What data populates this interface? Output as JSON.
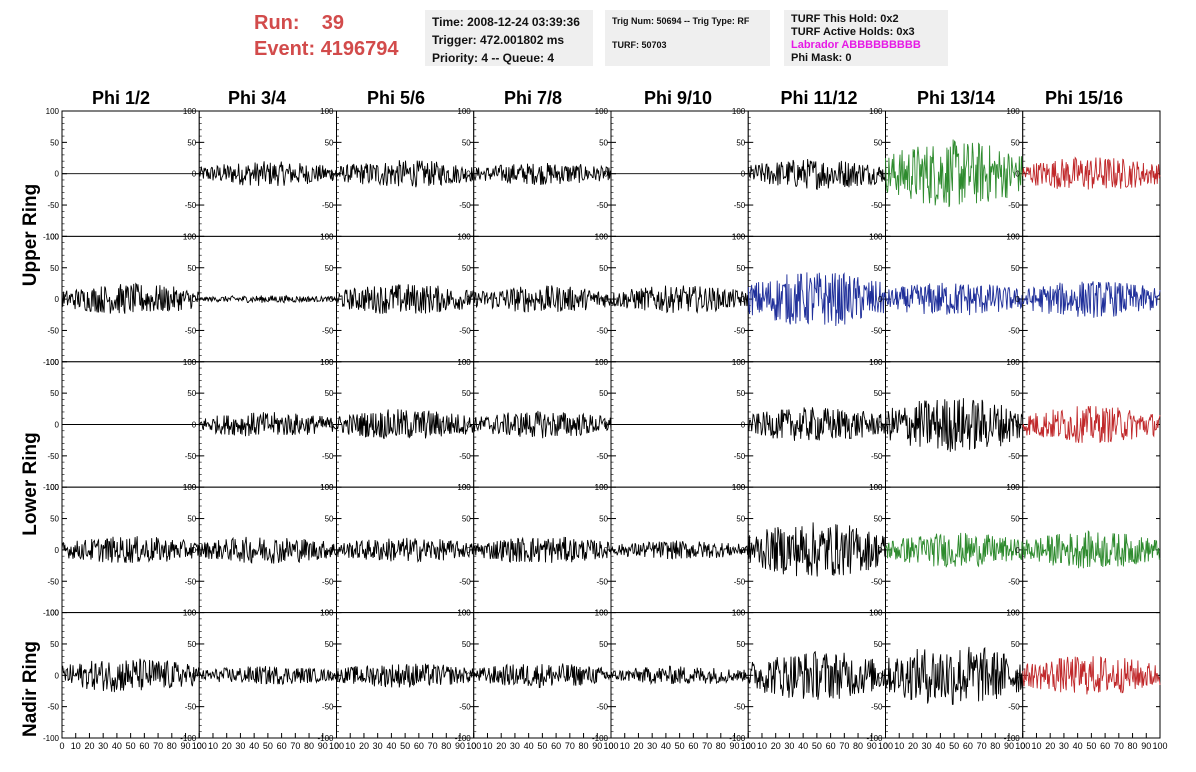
{
  "header": {
    "run_label": "Run:",
    "run_value": "39",
    "event_label": "Event:",
    "event_value": "4196794",
    "time": "Time: 2008-12-24 03:39:36",
    "trigger": "Trigger: 472.001802 ms",
    "priority": "Priority: 4 -- Queue: 4",
    "trig_num": "Trig Num: 50694 -- Trig Type: RF",
    "turf": "TURF: 50703",
    "turf_this_hold": "TURF This Hold: 0x2",
    "turf_active_holds": "TURF Active Holds: 0x3",
    "labrador": "Labrador ABBBBBBBBB",
    "phi_mask": "Phi Mask: 0"
  },
  "columns": [
    "Phi 1/2",
    "Phi 3/4",
    "Phi 5/6",
    "Phi 7/8",
    "Phi 9/10",
    "Phi 11/12",
    "Phi 13/14",
    "Phi 15/16"
  ],
  "ring_labels": [
    "Upper Ring",
    "Lower Ring",
    "Nadir Ring"
  ],
  "colors": {
    "run_text": "#d24b4b",
    "labrador": "#e619e6",
    "black_trace": "#000000",
    "green_trace": "#2e8b2e",
    "blue_trace": "#1f2f9a",
    "red_trace": "#c0282a"
  },
  "chart_data": {
    "type": "line",
    "xlabel": "",
    "ylabel": "",
    "xlim": [
      0,
      100
    ],
    "ylim": [
      -100,
      100
    ],
    "y_ticks": [
      100,
      50,
      0,
      -50,
      -100
    ],
    "x_ticks": [
      0,
      10,
      20,
      30,
      40,
      50,
      60,
      70,
      80,
      90,
      100
    ],
    "grid": false,
    "rows": 5,
    "cols": 8,
    "panels": [
      {
        "row": 0,
        "col": 0,
        "color": "black",
        "amp": 0
      },
      {
        "row": 0,
        "col": 1,
        "color": "black",
        "amp": 20
      },
      {
        "row": 0,
        "col": 2,
        "color": "black",
        "amp": 22
      },
      {
        "row": 0,
        "col": 3,
        "color": "black",
        "amp": 18
      },
      {
        "row": 0,
        "col": 4,
        "color": "black",
        "amp": 0
      },
      {
        "row": 0,
        "col": 5,
        "color": "black",
        "amp": 25
      },
      {
        "row": 0,
        "col": 6,
        "color": "green",
        "amp": 55
      },
      {
        "row": 0,
        "col": 7,
        "color": "red",
        "amp": 28
      },
      {
        "row": 1,
        "col": 0,
        "color": "black",
        "amp": 25
      },
      {
        "row": 1,
        "col": 1,
        "color": "black",
        "amp": 6
      },
      {
        "row": 1,
        "col": 2,
        "color": "black",
        "amp": 25
      },
      {
        "row": 1,
        "col": 3,
        "color": "black",
        "amp": 22
      },
      {
        "row": 1,
        "col": 4,
        "color": "black",
        "amp": 22
      },
      {
        "row": 1,
        "col": 5,
        "color": "blue",
        "amp": 45
      },
      {
        "row": 1,
        "col": 6,
        "color": "blue",
        "amp": 28
      },
      {
        "row": 1,
        "col": 7,
        "color": "blue",
        "amp": 30
      },
      {
        "row": 2,
        "col": 0,
        "color": "black",
        "amp": 0
      },
      {
        "row": 2,
        "col": 1,
        "color": "black",
        "amp": 20
      },
      {
        "row": 2,
        "col": 2,
        "color": "black",
        "amp": 25
      },
      {
        "row": 2,
        "col": 3,
        "color": "black",
        "amp": 22
      },
      {
        "row": 2,
        "col": 4,
        "color": "black",
        "amp": 0
      },
      {
        "row": 2,
        "col": 5,
        "color": "black",
        "amp": 28
      },
      {
        "row": 2,
        "col": 6,
        "color": "black",
        "amp": 45
      },
      {
        "row": 2,
        "col": 7,
        "color": "red",
        "amp": 30
      },
      {
        "row": 3,
        "col": 0,
        "color": "black",
        "amp": 22
      },
      {
        "row": 3,
        "col": 1,
        "color": "black",
        "amp": 22
      },
      {
        "row": 3,
        "col": 2,
        "color": "black",
        "amp": 20
      },
      {
        "row": 3,
        "col": 3,
        "color": "black",
        "amp": 22
      },
      {
        "row": 3,
        "col": 4,
        "color": "black",
        "amp": 15
      },
      {
        "row": 3,
        "col": 5,
        "color": "black",
        "amp": 45
      },
      {
        "row": 3,
        "col": 6,
        "color": "green",
        "amp": 28
      },
      {
        "row": 3,
        "col": 7,
        "color": "green",
        "amp": 30
      },
      {
        "row": 4,
        "col": 0,
        "color": "black",
        "amp": 28
      },
      {
        "row": 4,
        "col": 1,
        "color": "black",
        "amp": 15
      },
      {
        "row": 4,
        "col": 2,
        "color": "black",
        "amp": 20
      },
      {
        "row": 4,
        "col": 3,
        "color": "black",
        "amp": 20
      },
      {
        "row": 4,
        "col": 4,
        "color": "black",
        "amp": 15
      },
      {
        "row": 4,
        "col": 5,
        "color": "black",
        "amp": 40
      },
      {
        "row": 4,
        "col": 6,
        "color": "black",
        "amp": 50
      },
      {
        "row": 4,
        "col": 7,
        "color": "red",
        "amp": 32
      }
    ]
  }
}
